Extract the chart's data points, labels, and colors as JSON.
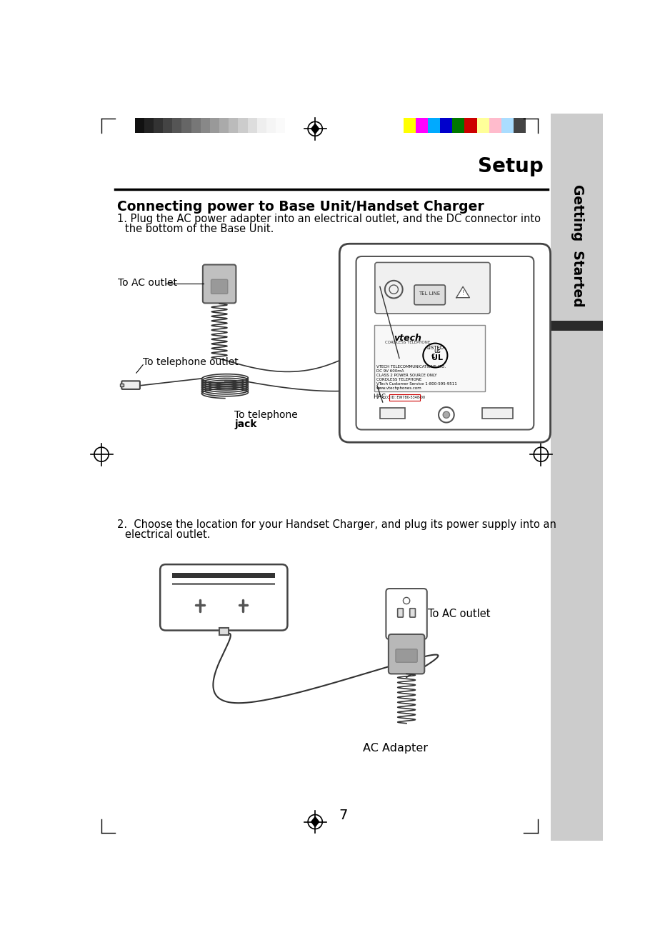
{
  "page_number": "7",
  "title": "Setup",
  "section_title": "Connecting power to Base Unit/Handset Charger",
  "step1_line1": "1. Plug the AC power adapter into an electrical outlet, and the DC connector into",
  "step1_line2": "   the bottom of the Base Unit.",
  "step2_line1": "2.  Choose the location for your Handset Charger, and plug its power supply into an",
  "step2_line2": "   electrical outlet.",
  "label_ac_outlet": "To AC outlet",
  "label_tel_outlet": "To telephone outlet",
  "label_tel_jack_1": "To telephone",
  "label_tel_jack_2": "jack",
  "label_ac_outlet2": "To AC outlet",
  "label_ac_adapter": "AC Adapter",
  "sidebar_text": "Getting  Started",
  "bg_color": "#ffffff",
  "sidebar_color": "#cccccc",
  "sidebar_dark_bar_color": "#2a2a2a",
  "gray_bar_colors": [
    "#111111",
    "#222222",
    "#333333",
    "#444444",
    "#555555",
    "#666666",
    "#777777",
    "#888888",
    "#999999",
    "#aaaaaa",
    "#bbbbbb",
    "#cccccc",
    "#dddddd",
    "#eeeeee",
    "#f5f5f5",
    "#fafafa",
    "#ffffff"
  ],
  "color_bar_colors": [
    "#ffff00",
    "#ff00ff",
    "#00aaff",
    "#0000cc",
    "#007700",
    "#cc0000",
    "#ffff99",
    "#ffbbcc",
    "#aaddff",
    "#444444"
  ],
  "page_bg": "#e8e8e8"
}
